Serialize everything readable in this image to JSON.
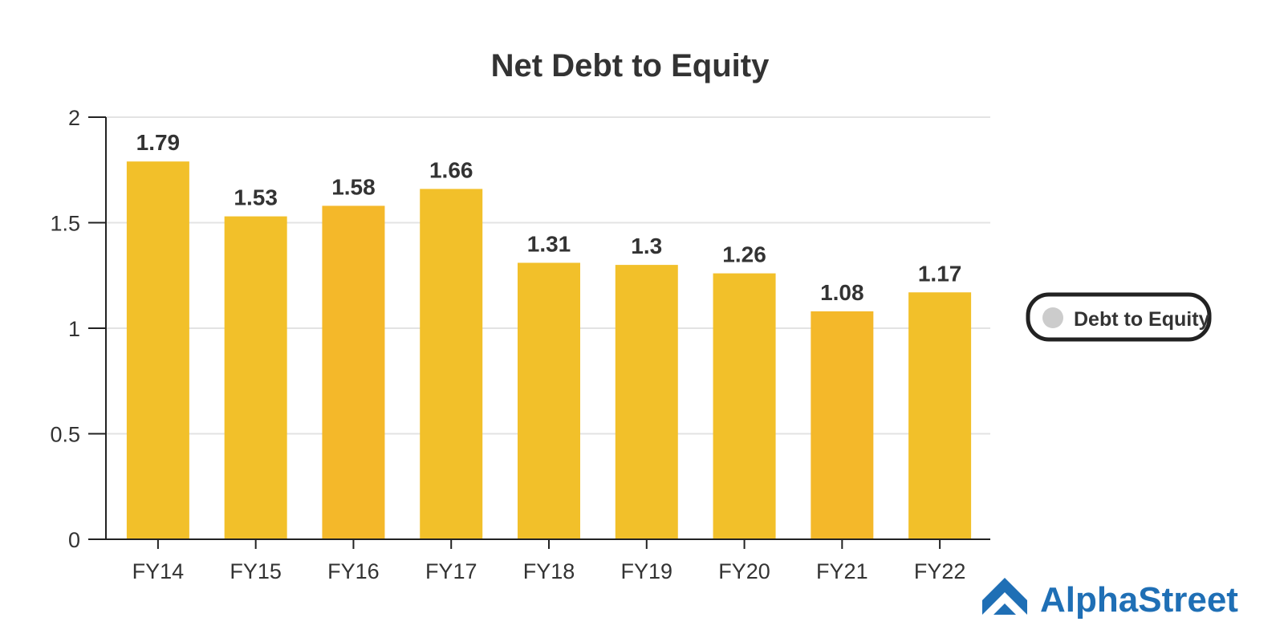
{
  "chart_data": {
    "type": "bar",
    "title": "Net Debt to Equity",
    "categories": [
      "FY14",
      "FY15",
      "FY16",
      "FY17",
      "FY18",
      "FY19",
      "FY20",
      "FY21",
      "FY22"
    ],
    "values": [
      1.79,
      1.53,
      1.58,
      1.66,
      1.31,
      1.3,
      1.26,
      1.08,
      1.17
    ],
    "value_labels": [
      "1.79",
      "1.53",
      "1.58",
      "1.66",
      "1.31",
      "1.3",
      "1.26",
      "1.08",
      "1.17"
    ],
    "series": [
      {
        "name": "Debt to Equity",
        "values": [
          1.79,
          1.53,
          1.58,
          1.66,
          1.31,
          1.3,
          1.26,
          1.08,
          1.17
        ]
      }
    ],
    "ylim": [
      0,
      2
    ],
    "yticks": [
      0,
      0.5,
      1,
      1.5,
      2
    ],
    "ytick_labels": [
      "0",
      "0.5",
      "1",
      "1.5",
      "2"
    ],
    "grid": true,
    "legend_placement": "right",
    "legend_marker_color": "#cccccc",
    "bar_colors": [
      "#f2c02a",
      "#f2c02a",
      "#f4b82a",
      "#f2c02a",
      "#f2c02a",
      "#f2c02a",
      "#f2c02a",
      "#f4b82a",
      "#f2c02a"
    ]
  },
  "branding": {
    "name": "AlphaStreet",
    "color": "#1f6fb5",
    "logo_icon": "house-chevron-icon"
  }
}
